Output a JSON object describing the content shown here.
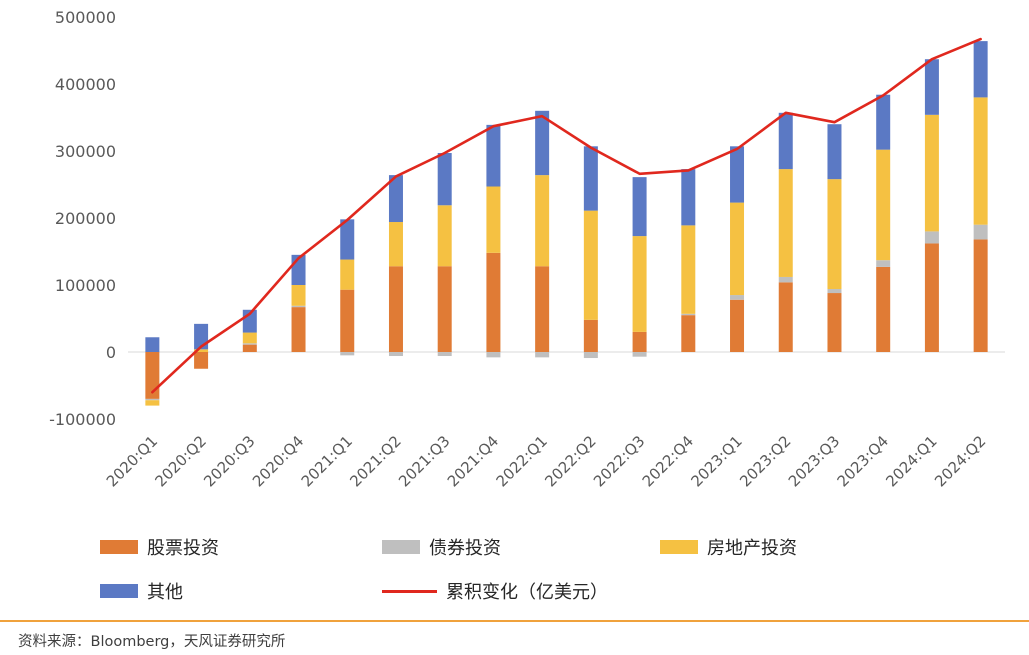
{
  "chart_data": {
    "type": "bar",
    "subtype": "stacked-bar-with-line",
    "stacked": true,
    "grid": false,
    "legend_position": "bottom",
    "ylim": [
      -100000,
      500000
    ],
    "yticks": [
      500000,
      400000,
      300000,
      200000,
      100000,
      0,
      -100000
    ],
    "categories": [
      "2020:Q1",
      "2020:Q2",
      "2020:Q3",
      "2020:Q4",
      "2021:Q1",
      "2021:Q2",
      "2021:Q3",
      "2021:Q4",
      "2022:Q1",
      "2022:Q2",
      "2022:Q3",
      "2022:Q4",
      "2023:Q1",
      "2023:Q2",
      "2023:Q3",
      "2023:Q4",
      "2024:Q1",
      "2024:Q2"
    ],
    "series": [
      {
        "name": "股票投资",
        "type": "bar",
        "color": "#E07B35",
        "values": [
          -70000,
          -25000,
          11000,
          67000,
          93000,
          128000,
          128000,
          148000,
          128000,
          48000,
          30000,
          55000,
          78000,
          104000,
          88000,
          127000,
          162000,
          168000
        ]
      },
      {
        "name": "债券投资",
        "type": "bar",
        "color": "#BFBFBF",
        "values": [
          -2000,
          0,
          2000,
          2000,
          -5000,
          -6000,
          -6000,
          -8000,
          -8000,
          -9000,
          -7000,
          2000,
          7000,
          8000,
          6000,
          10000,
          18000,
          22000
        ]
      },
      {
        "name": "房地产投资",
        "type": "bar",
        "color": "#F5C142",
        "values": [
          -8000,
          4000,
          16000,
          31000,
          45000,
          66000,
          91000,
          99000,
          136000,
          163000,
          143000,
          132000,
          138000,
          161000,
          164000,
          165000,
          174000,
          190000
        ]
      },
      {
        "name": "其他",
        "type": "bar",
        "color": "#5B79C4",
        "values": [
          22000,
          38000,
          34000,
          45000,
          60000,
          70000,
          78000,
          92000,
          96000,
          96000,
          88000,
          84000,
          84000,
          84000,
          82000,
          82000,
          83000,
          84000
        ]
      },
      {
        "name": "累积变化（亿美元）",
        "type": "line",
        "color": "#E0281E",
        "values": [
          -60000,
          8000,
          57000,
          140000,
          197000,
          262000,
          297000,
          337000,
          352000,
          305000,
          266000,
          271000,
          303000,
          357000,
          343000,
          383000,
          437000,
          467000
        ]
      }
    ]
  },
  "legend": {
    "items": [
      {
        "label": "股票投资",
        "color": "#E07B35",
        "swatch": "rect"
      },
      {
        "label": "债券投资",
        "color": "#BFBFBF",
        "swatch": "rect"
      },
      {
        "label": "房地产投资",
        "color": "#F5C142",
        "swatch": "rect"
      },
      {
        "label": "其他",
        "color": "#5B79C4",
        "swatch": "rect"
      },
      {
        "label": "累积变化（亿美元）",
        "color": "#E0281E",
        "swatch": "line"
      }
    ]
  },
  "footer": {
    "rule_color": "#F0A23C",
    "source_note": "资料来源：Bloomberg，天风证券研究所"
  }
}
